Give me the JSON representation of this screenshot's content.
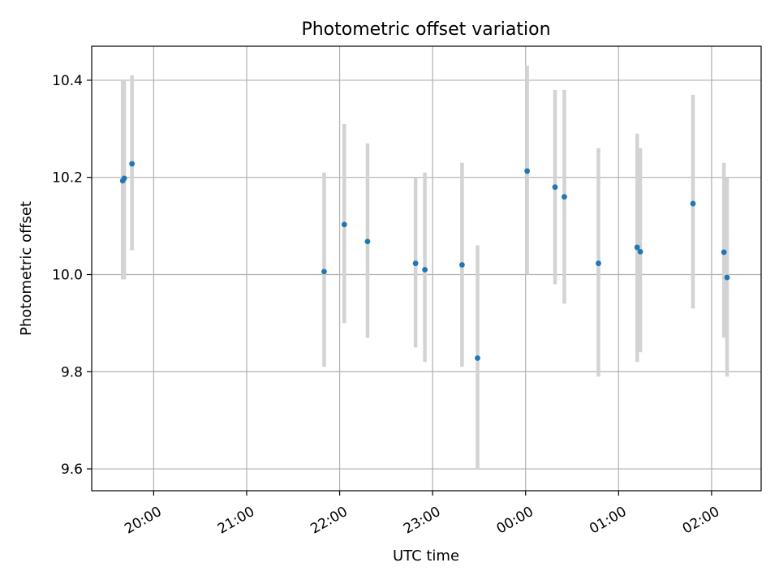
{
  "chart_data": {
    "type": "scatter",
    "title": "Photometric offset variation",
    "xlabel": "UTC time",
    "ylabel": "Photometric offset",
    "grid": true,
    "xlim": [
      "19:20",
      "02:32"
    ],
    "ylim": [
      9.555,
      10.47
    ],
    "xticks": [
      "20:00",
      "21:00",
      "22:00",
      "23:00",
      "00:00",
      "01:00",
      "02:00"
    ],
    "yticks": [
      "9.6",
      "9.8",
      "10.0",
      "10.2",
      "10.4"
    ],
    "colors": {
      "points": "#1f77b4",
      "error_bars": "#d3d3d3"
    },
    "series": [
      {
        "points": [
          {
            "x": "19:40",
            "y": 10.193,
            "yerr_low": 9.99,
            "yerr_high": 10.4
          },
          {
            "x": "19:41",
            "y": 10.198,
            "yerr_low": 9.99,
            "yerr_high": 10.4
          },
          {
            "x": "19:46",
            "y": 10.228,
            "yerr_low": 10.05,
            "yerr_high": 10.41
          },
          {
            "x": "21:50",
            "y": 10.006,
            "yerr_low": 9.81,
            "yerr_high": 10.21
          },
          {
            "x": "22:03",
            "y": 10.103,
            "yerr_low": 9.9,
            "yerr_high": 10.31
          },
          {
            "x": "22:18",
            "y": 10.068,
            "yerr_low": 9.87,
            "yerr_high": 10.27
          },
          {
            "x": "22:49",
            "y": 10.023,
            "yerr_low": 9.85,
            "yerr_high": 10.2
          },
          {
            "x": "22:55",
            "y": 10.01,
            "yerr_low": 9.82,
            "yerr_high": 10.21
          },
          {
            "x": "23:19",
            "y": 10.02,
            "yerr_low": 9.81,
            "yerr_high": 10.23
          },
          {
            "x": "23:29",
            "y": 9.828,
            "yerr_low": 9.6,
            "yerr_high": 10.06
          },
          {
            "x": "00:01",
            "y": 10.213,
            "yerr_low": 10.0,
            "yerr_high": 10.43
          },
          {
            "x": "00:19",
            "y": 10.18,
            "yerr_low": 9.98,
            "yerr_high": 10.38
          },
          {
            "x": "00:25",
            "y": 10.16,
            "yerr_low": 9.94,
            "yerr_high": 10.38
          },
          {
            "x": "00:47",
            "y": 10.023,
            "yerr_low": 9.79,
            "yerr_high": 10.26
          },
          {
            "x": "01:12",
            "y": 10.056,
            "yerr_low": 9.82,
            "yerr_high": 10.29
          },
          {
            "x": "01:14",
            "y": 10.047,
            "yerr_low": 9.84,
            "yerr_high": 10.26
          },
          {
            "x": "01:48",
            "y": 10.146,
            "yerr_low": 9.93,
            "yerr_high": 10.37
          },
          {
            "x": "02:08",
            "y": 10.046,
            "yerr_low": 9.87,
            "yerr_high": 10.23
          },
          {
            "x": "02:10",
            "y": 9.994,
            "yerr_low": 9.79,
            "yerr_high": 10.2
          }
        ]
      }
    ]
  }
}
